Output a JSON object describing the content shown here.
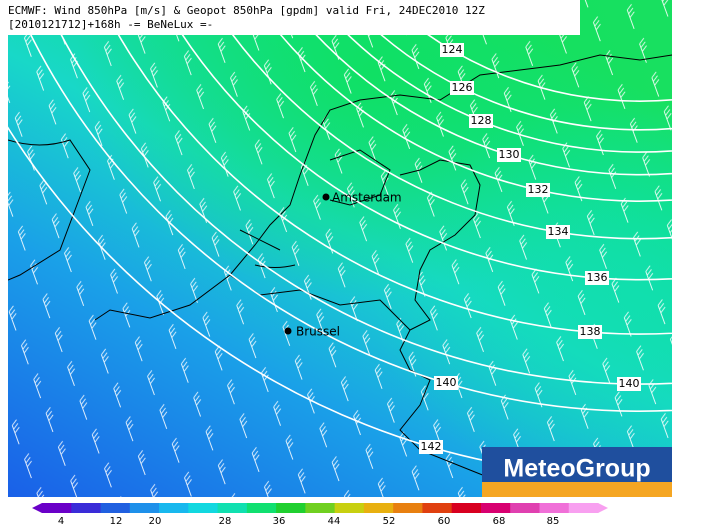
{
  "header": {
    "line1": "ECMWF: Wind 850hPa [m/s] & Geopot 850hPa [gpdm] valid Fri, 24DEC2010 12Z",
    "line2": "[2010121712]+168h -= BeNeLux =-"
  },
  "contours": [
    124,
    126,
    128,
    130,
    132,
    134,
    136,
    138,
    140,
    140,
    142
  ],
  "cities": [
    "Amsterdam",
    "Brussel"
  ],
  "colorbar": {
    "ticks": [
      4,
      12,
      20,
      28,
      36,
      44,
      52,
      60,
      68,
      85
    ],
    "colors": [
      "#6a00c8",
      "#3a2cd8",
      "#2060e0",
      "#1e90ea",
      "#18b8ee",
      "#12d8e0",
      "#10e0b0",
      "#10e070",
      "#20d030",
      "#70d020",
      "#c8d010",
      "#e8b010",
      "#e88010",
      "#e04010",
      "#d80020",
      "#d80070",
      "#e040b0",
      "#f070d8",
      "#f8a0f0"
    ]
  },
  "logo": "MeteoGroup"
}
